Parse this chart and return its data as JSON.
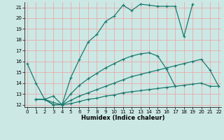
{
  "xlabel": "Humidex (Indice chaleur)",
  "bg_color": "#cce8e5",
  "grid_color_v": "#e8aaaa",
  "grid_color_h": "#e8aaaa",
  "line_color": "#1a7a6e",
  "line1_x": [
    0,
    1,
    2,
    3,
    4,
    5,
    6,
    7,
    8,
    9,
    10,
    11,
    12,
    13,
    14,
    15,
    16,
    17,
    18,
    19
  ],
  "line1_y": [
    15.8,
    14.0,
    12.5,
    12.0,
    12.0,
    14.5,
    16.2,
    17.8,
    18.5,
    19.7,
    20.2,
    21.2,
    20.7,
    21.3,
    21.2,
    21.1,
    21.1,
    21.1,
    18.3,
    21.3
  ],
  "line2_x": [
    1,
    2,
    3,
    4,
    5,
    6,
    7,
    8,
    9,
    10,
    11,
    12,
    13,
    14,
    15,
    16,
    17
  ],
  "line2_y": [
    12.5,
    12.5,
    12.0,
    12.0,
    13.0,
    13.8,
    14.4,
    14.9,
    15.4,
    15.8,
    16.2,
    16.5,
    16.7,
    16.8,
    16.5,
    15.3,
    13.7
  ],
  "line3_x": [
    1,
    2,
    3,
    4,
    5,
    6,
    7,
    8,
    9,
    10,
    11,
    12,
    13,
    14,
    15,
    16,
    17,
    18,
    19,
    20,
    21,
    22
  ],
  "line3_y": [
    12.5,
    12.5,
    12.8,
    12.0,
    12.4,
    12.8,
    13.1,
    13.4,
    13.7,
    14.0,
    14.3,
    14.6,
    14.8,
    15.0,
    15.2,
    15.4,
    15.6,
    15.8,
    16.0,
    16.2,
    15.2,
    13.7
  ],
  "line4_x": [
    1,
    2,
    3,
    4,
    5,
    6,
    7,
    8,
    9,
    10,
    11,
    12,
    13,
    14,
    15,
    16,
    17,
    18,
    19,
    20,
    21,
    22
  ],
  "line4_y": [
    12.5,
    12.5,
    12.2,
    12.0,
    12.1,
    12.3,
    12.5,
    12.6,
    12.8,
    12.9,
    13.1,
    13.2,
    13.3,
    13.4,
    13.5,
    13.6,
    13.7,
    13.8,
    13.9,
    14.0,
    13.7,
    13.7
  ],
  "ylim": [
    11.8,
    21.5
  ],
  "xlim": [
    -0.3,
    22.3
  ],
  "yticks": [
    12,
    13,
    14,
    15,
    16,
    17,
    18,
    19,
    20,
    21
  ],
  "xticks": [
    0,
    1,
    2,
    3,
    4,
    5,
    6,
    7,
    8,
    9,
    10,
    11,
    12,
    13,
    14,
    15,
    16,
    17,
    18,
    19,
    20,
    21,
    22
  ]
}
